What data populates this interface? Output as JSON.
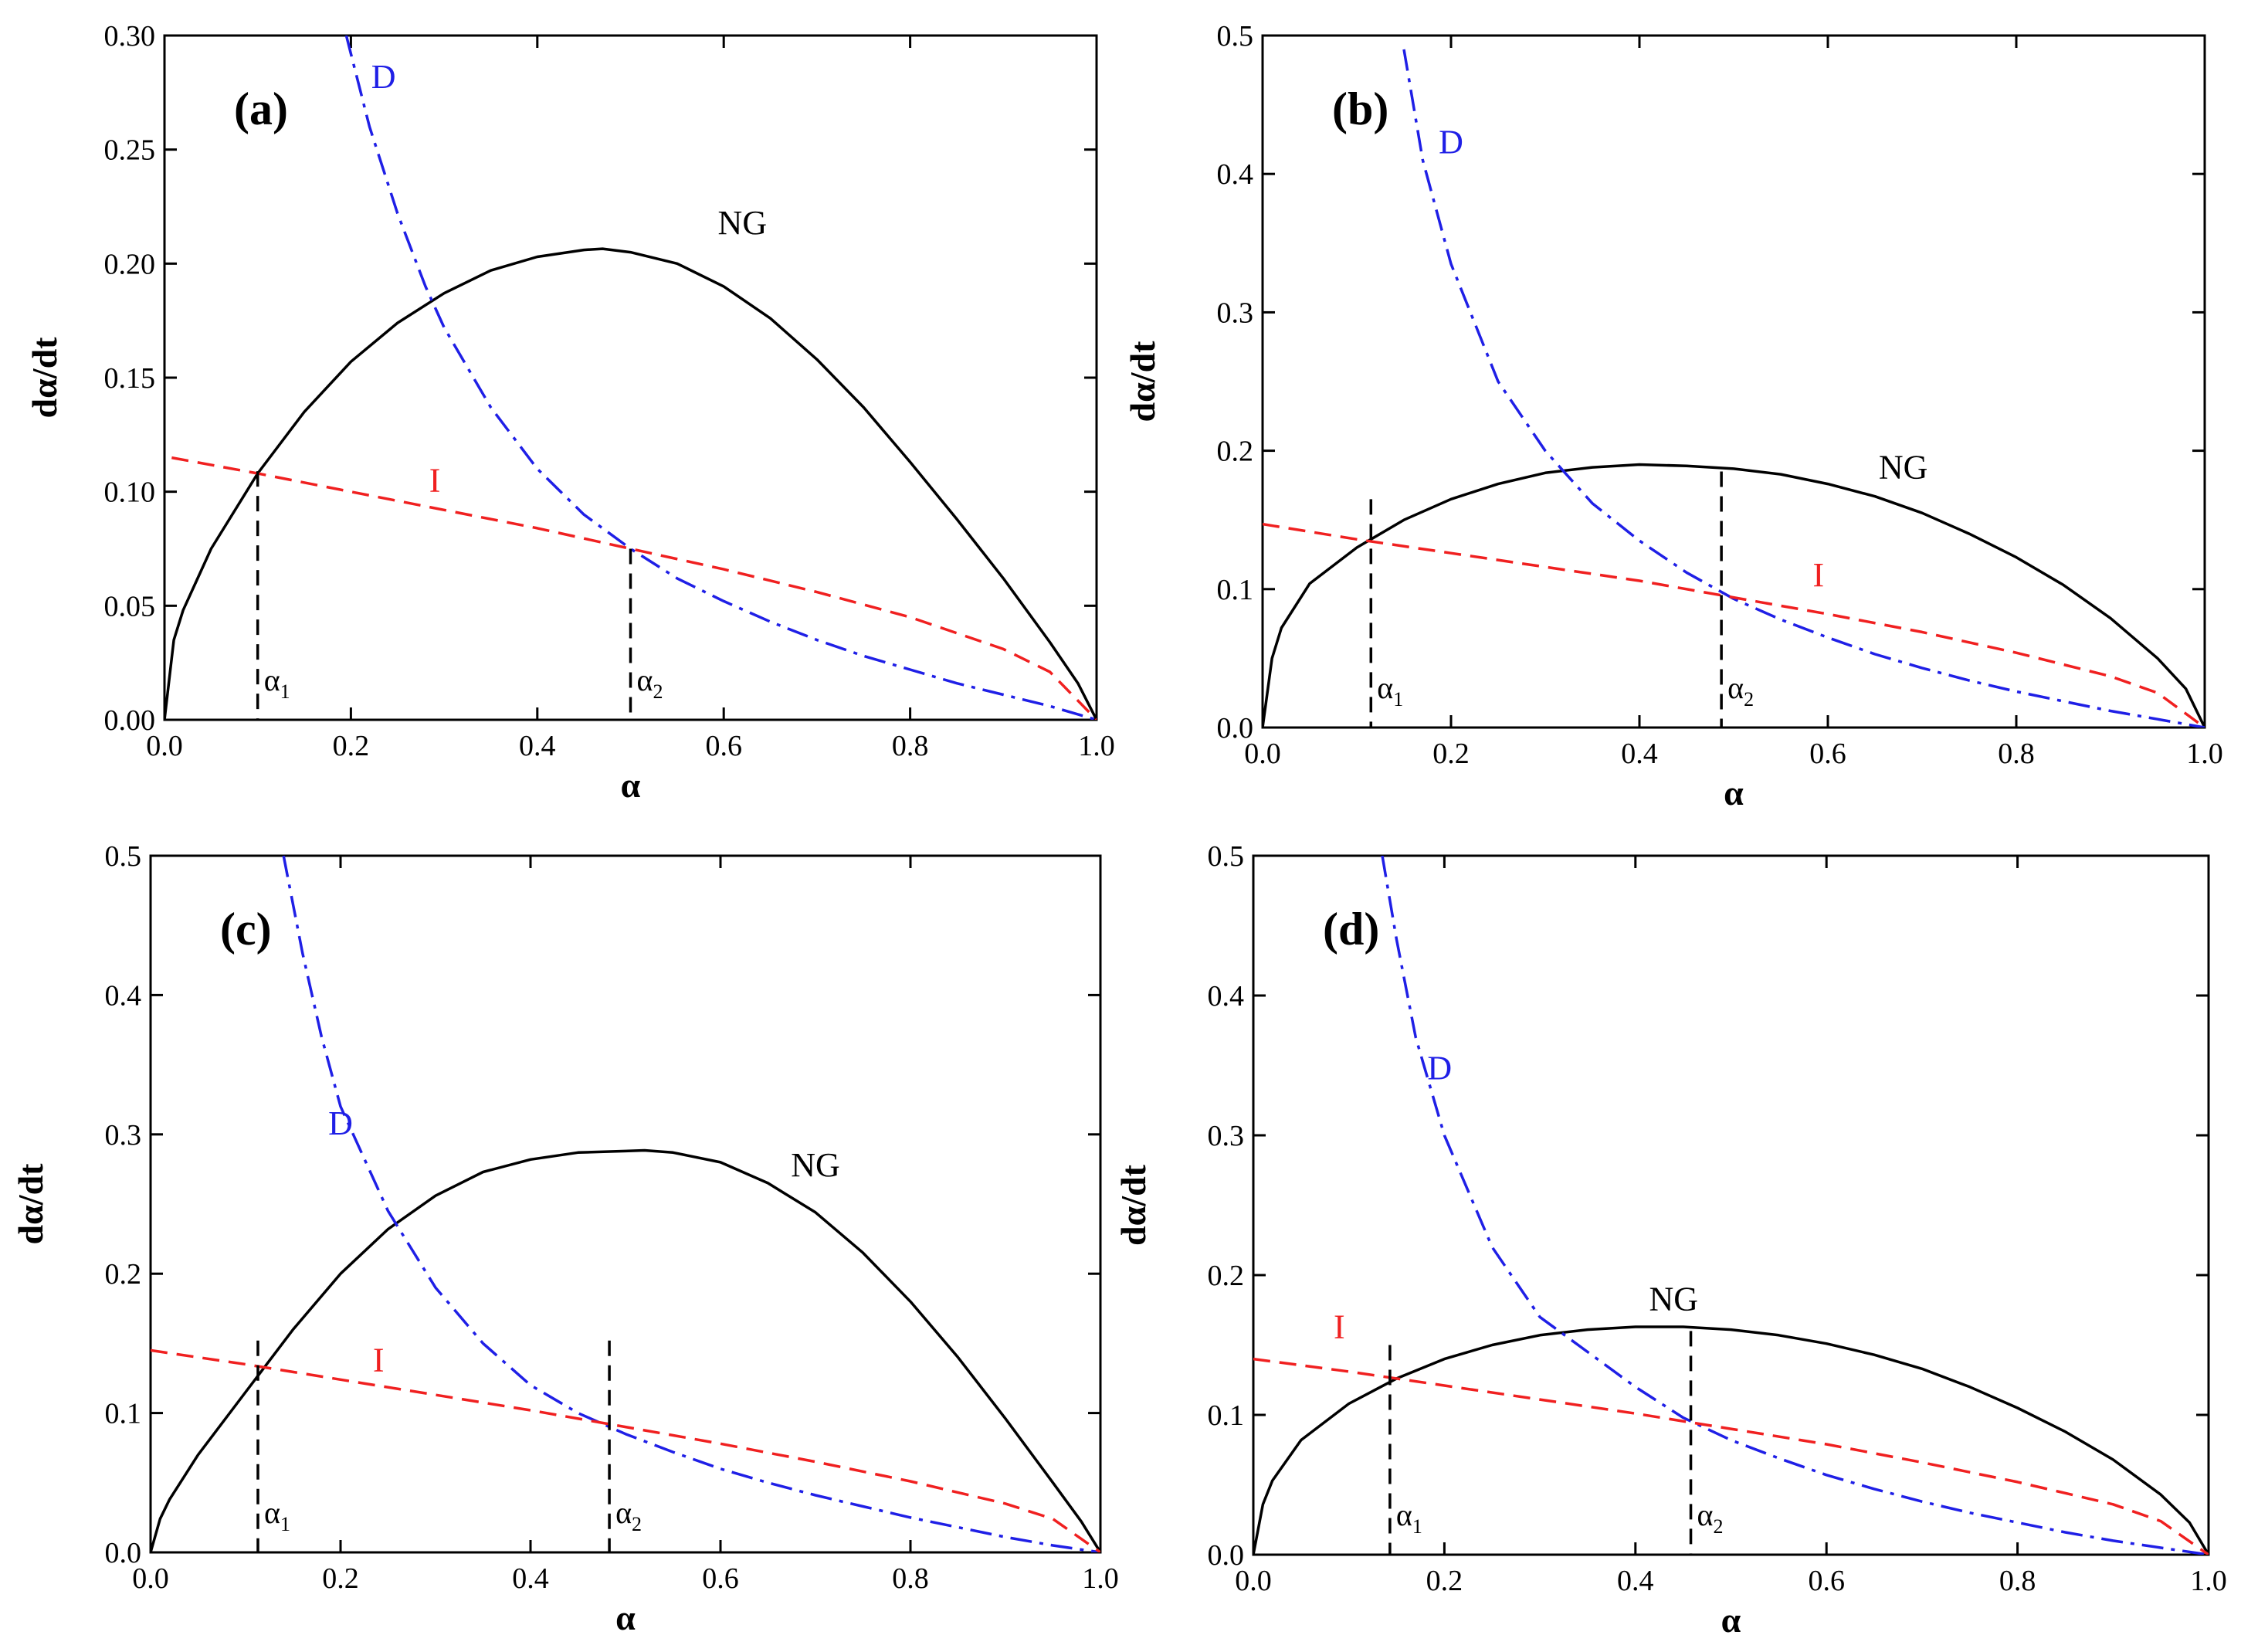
{
  "figure": {
    "line_styles": {
      "NG": {
        "color": "#000000",
        "dash": "solid"
      },
      "D": {
        "color": "#1f1fe6",
        "dash": "dashdot"
      },
      "I": {
        "color": "#f02020",
        "dash": "dashed"
      },
      "marker": {
        "color": "#000000",
        "dash": "dashed"
      }
    }
  },
  "chart_data": [
    {
      "type": "line",
      "panel_label": "(a)",
      "xlabel": "α",
      "ylabel": "dα/dt",
      "xlim": [
        0.0,
        1.0
      ],
      "ylim": [
        0.0,
        0.3
      ],
      "xticks": [
        0.0,
        0.2,
        0.4,
        0.6,
        0.8,
        1.0
      ],
      "xtick_labels": [
        "0.0",
        "0.2",
        "0.4",
        "0.6",
        "0.8",
        "1.0"
      ],
      "yticks": [
        0.0,
        0.05,
        0.1,
        0.15,
        0.2,
        0.25,
        0.3
      ],
      "ytick_labels": [
        "0.00",
        "0.05",
        "0.10",
        "0.15",
        "0.20",
        "0.25",
        "0.30"
      ],
      "series": [
        {
          "name": "NG",
          "label": "NG",
          "label_at": [
            0.62,
            0.213
          ],
          "x": [
            0.0,
            0.01,
            0.02,
            0.05,
            0.1,
            0.15,
            0.2,
            0.25,
            0.3,
            0.35,
            0.4,
            0.45,
            0.47,
            0.5,
            0.55,
            0.6,
            0.65,
            0.7,
            0.75,
            0.8,
            0.85,
            0.9,
            0.95,
            0.98,
            1.0
          ],
          "y": [
            0.0,
            0.035,
            0.048,
            0.075,
            0.108,
            0.135,
            0.157,
            0.174,
            0.187,
            0.197,
            0.203,
            0.206,
            0.2065,
            0.205,
            0.2,
            0.19,
            0.176,
            0.158,
            0.137,
            0.113,
            0.088,
            0.062,
            0.034,
            0.016,
            0.0
          ]
        },
        {
          "name": "D",
          "label": "D",
          "label_at": [
            0.235,
            0.277
          ],
          "x": [
            0.195,
            0.22,
            0.25,
            0.28,
            0.3,
            0.35,
            0.4,
            0.45,
            0.5,
            0.55,
            0.6,
            0.65,
            0.7,
            0.75,
            0.8,
            0.85,
            0.9,
            0.95,
            1.0
          ],
          "y": [
            0.3,
            0.26,
            0.222,
            0.19,
            0.172,
            0.137,
            0.11,
            0.09,
            0.075,
            0.062,
            0.052,
            0.043,
            0.035,
            0.028,
            0.022,
            0.016,
            0.011,
            0.006,
            0.0
          ]
        },
        {
          "name": "I",
          "label": "I",
          "label_at": [
            0.29,
            0.1
          ],
          "x": [
            -0.02,
            0.1,
            0.2,
            0.3,
            0.4,
            0.5,
            0.6,
            0.7,
            0.8,
            0.9,
            0.95,
            1.0
          ],
          "y": [
            0.117,
            0.108,
            0.1,
            0.092,
            0.084,
            0.075,
            0.066,
            0.056,
            0.045,
            0.031,
            0.021,
            0.0
          ]
        }
      ],
      "markers": [
        {
          "label": "α1",
          "main": "α",
          "sub": "1",
          "x": 0.1,
          "y_top": 0.109
        },
        {
          "label": "α2",
          "main": "α",
          "sub": "2",
          "x": 0.5,
          "y_top": 0.075
        }
      ]
    },
    {
      "type": "line",
      "panel_label": "(b)",
      "xlabel": "α",
      "ylabel": "dα/dt",
      "xlim": [
        0.0,
        1.0
      ],
      "ylim": [
        0.0,
        0.5
      ],
      "xticks": [
        0.0,
        0.2,
        0.4,
        0.6,
        0.8,
        1.0
      ],
      "xtick_labels": [
        "0.0",
        "0.2",
        "0.4",
        "0.6",
        "0.8",
        "1.0"
      ],
      "yticks": [
        0.0,
        0.1,
        0.2,
        0.3,
        0.4,
        0.5
      ],
      "ytick_labels": [
        "0.0",
        "0.1",
        "0.2",
        "0.3",
        "0.4",
        "0.5"
      ],
      "series": [
        {
          "name": "NG",
          "label": "NG",
          "label_at": [
            0.68,
            0.18
          ],
          "x": [
            0.0,
            0.01,
            0.02,
            0.05,
            0.1,
            0.15,
            0.2,
            0.25,
            0.3,
            0.35,
            0.4,
            0.45,
            0.5,
            0.55,
            0.6,
            0.65,
            0.7,
            0.75,
            0.8,
            0.85,
            0.9,
            0.95,
            0.98,
            1.0
          ],
          "y": [
            0.0,
            0.05,
            0.072,
            0.104,
            0.13,
            0.15,
            0.165,
            0.176,
            0.184,
            0.188,
            0.19,
            0.189,
            0.187,
            0.183,
            0.176,
            0.167,
            0.155,
            0.14,
            0.123,
            0.103,
            0.079,
            0.05,
            0.028,
            0.0
          ]
        },
        {
          "name": "D",
          "label": "D",
          "label_at": [
            0.2,
            0.415
          ],
          "x": [
            0.15,
            0.17,
            0.2,
            0.25,
            0.3,
            0.35,
            0.4,
            0.45,
            0.5,
            0.55,
            0.6,
            0.65,
            0.7,
            0.75,
            0.8,
            0.85,
            0.9,
            0.95,
            1.0
          ],
          "y": [
            0.49,
            0.41,
            0.335,
            0.25,
            0.2,
            0.162,
            0.135,
            0.112,
            0.093,
            0.078,
            0.065,
            0.053,
            0.043,
            0.034,
            0.026,
            0.019,
            0.012,
            0.006,
            0.0
          ]
        },
        {
          "name": "I",
          "label": "I",
          "label_at": [
            0.59,
            0.102
          ],
          "x": [
            0.0,
            0.1,
            0.2,
            0.3,
            0.4,
            0.5,
            0.6,
            0.7,
            0.8,
            0.9,
            0.95,
            1.0
          ],
          "y": [
            0.147,
            0.136,
            0.126,
            0.116,
            0.106,
            0.094,
            0.082,
            0.069,
            0.054,
            0.037,
            0.025,
            0.0
          ]
        }
      ],
      "markers": [
        {
          "label": "α1",
          "main": "α",
          "sub": "1",
          "x": 0.115,
          "y_top": 0.165
        },
        {
          "label": "α2",
          "main": "α",
          "sub": "2",
          "x": 0.487,
          "y_top": 0.185
        }
      ]
    },
    {
      "type": "line",
      "panel_label": "(c)",
      "xlabel": "α",
      "ylabel": "dα/dt",
      "xlim": [
        0.0,
        1.0
      ],
      "ylim": [
        0.0,
        0.5
      ],
      "xticks": [
        0.0,
        0.2,
        0.4,
        0.6,
        0.8,
        1.0
      ],
      "xtick_labels": [
        "0.0",
        "0.2",
        "0.4",
        "0.6",
        "0.8",
        "1.0"
      ],
      "yticks": [
        0.0,
        0.1,
        0.2,
        0.3,
        0.4,
        0.5
      ],
      "ytick_labels": [
        "0.0",
        "0.1",
        "0.2",
        "0.3",
        "0.4",
        "0.5"
      ],
      "series": [
        {
          "name": "NG",
          "label": "NG",
          "label_at": [
            0.7,
            0.27
          ],
          "x": [
            0.0,
            0.01,
            0.02,
            0.05,
            0.1,
            0.15,
            0.2,
            0.25,
            0.3,
            0.35,
            0.4,
            0.45,
            0.5,
            0.52,
            0.55,
            0.6,
            0.65,
            0.7,
            0.75,
            0.8,
            0.85,
            0.9,
            0.95,
            0.98,
            1.0
          ],
          "y": [
            0.0,
            0.024,
            0.038,
            0.07,
            0.115,
            0.16,
            0.2,
            0.232,
            0.256,
            0.273,
            0.282,
            0.287,
            0.288,
            0.2885,
            0.287,
            0.28,
            0.265,
            0.244,
            0.215,
            0.18,
            0.14,
            0.096,
            0.05,
            0.022,
            0.0
          ]
        },
        {
          "name": "D",
          "label": "D",
          "label_at": [
            0.2,
            0.3
          ],
          "x": [
            0.14,
            0.16,
            0.18,
            0.2,
            0.25,
            0.3,
            0.35,
            0.4,
            0.45,
            0.5,
            0.55,
            0.6,
            0.65,
            0.7,
            0.75,
            0.8,
            0.85,
            0.9,
            0.95,
            1.0
          ],
          "y": [
            0.5,
            0.43,
            0.37,
            0.32,
            0.245,
            0.19,
            0.15,
            0.12,
            0.1,
            0.085,
            0.072,
            0.06,
            0.05,
            0.041,
            0.033,
            0.025,
            0.018,
            0.011,
            0.005,
            0.0
          ]
        },
        {
          "name": "I",
          "label": "I",
          "label_at": [
            0.24,
            0.13
          ],
          "x": [
            0.0,
            0.1,
            0.2,
            0.3,
            0.4,
            0.5,
            0.6,
            0.7,
            0.8,
            0.9,
            0.95,
            1.0
          ],
          "y": [
            0.145,
            0.135,
            0.124,
            0.113,
            0.102,
            0.09,
            0.078,
            0.065,
            0.051,
            0.035,
            0.024,
            0.0
          ]
        }
      ],
      "markers": [
        {
          "label": "α1",
          "main": "α",
          "sub": "1",
          "x": 0.113,
          "y_top": 0.152
        },
        {
          "label": "α2",
          "main": "α",
          "sub": "2",
          "x": 0.483,
          "y_top": 0.152
        }
      ]
    },
    {
      "type": "line",
      "panel_label": "(d)",
      "xlabel": "α",
      "ylabel": "dα/dt",
      "xlim": [
        0.0,
        1.0
      ],
      "ylim": [
        0.0,
        0.5
      ],
      "xticks": [
        0.0,
        0.2,
        0.4,
        0.6,
        0.8,
        1.0
      ],
      "xtick_labels": [
        "0.0",
        "0.2",
        "0.4",
        "0.6",
        "0.8",
        "1.0"
      ],
      "yticks": [
        0.0,
        0.1,
        0.2,
        0.3,
        0.4,
        0.5
      ],
      "ytick_labels": [
        "0.0",
        "0.1",
        "0.2",
        "0.3",
        "0.4",
        "0.5"
      ],
      "series": [
        {
          "name": "NG",
          "label": "NG",
          "label_at": [
            0.44,
            0.175
          ],
          "x": [
            0.0,
            0.01,
            0.02,
            0.05,
            0.1,
            0.15,
            0.2,
            0.25,
            0.3,
            0.35,
            0.4,
            0.45,
            0.5,
            0.55,
            0.6,
            0.65,
            0.7,
            0.75,
            0.8,
            0.85,
            0.9,
            0.95,
            0.98,
            1.0
          ],
          "y": [
            0.0,
            0.036,
            0.053,
            0.082,
            0.108,
            0.126,
            0.14,
            0.15,
            0.157,
            0.161,
            0.163,
            0.163,
            0.161,
            0.157,
            0.151,
            0.143,
            0.133,
            0.12,
            0.105,
            0.088,
            0.068,
            0.043,
            0.023,
            0.0
          ]
        },
        {
          "name": "D",
          "label": "D",
          "label_at": [
            0.195,
            0.34
          ],
          "x": [
            0.135,
            0.15,
            0.17,
            0.2,
            0.25,
            0.3,
            0.35,
            0.4,
            0.45,
            0.5,
            0.55,
            0.6,
            0.65,
            0.7,
            0.75,
            0.8,
            0.85,
            0.9,
            0.95,
            1.0
          ],
          "y": [
            0.5,
            0.44,
            0.37,
            0.3,
            0.22,
            0.17,
            0.145,
            0.12,
            0.098,
            0.082,
            0.069,
            0.057,
            0.047,
            0.038,
            0.03,
            0.023,
            0.016,
            0.01,
            0.005,
            0.0
          ]
        },
        {
          "name": "I",
          "label": "I",
          "label_at": [
            0.09,
            0.155
          ],
          "x": [
            0.0,
            0.1,
            0.2,
            0.3,
            0.4,
            0.5,
            0.6,
            0.7,
            0.8,
            0.9,
            0.95,
            1.0
          ],
          "y": [
            0.14,
            0.131,
            0.121,
            0.111,
            0.101,
            0.09,
            0.079,
            0.066,
            0.052,
            0.036,
            0.024,
            0.0
          ]
        }
      ],
      "markers": [
        {
          "label": "α1",
          "main": "α",
          "sub": "1",
          "x": 0.143,
          "y_top": 0.15
        },
        {
          "label": "α2",
          "main": "α",
          "sub": "2",
          "x": 0.458,
          "y_top": 0.16
        }
      ]
    }
  ]
}
